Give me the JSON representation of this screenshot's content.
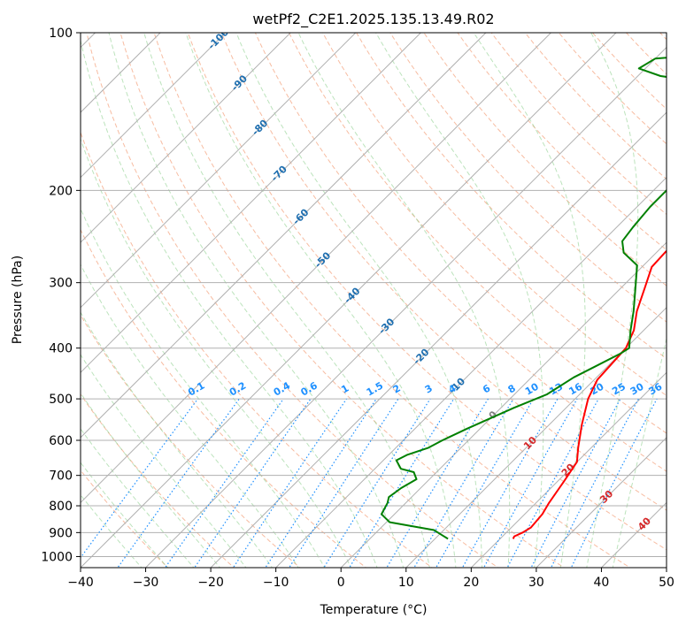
{
  "chart_data": {
    "type": "line",
    "title": "wetPf2_C2E1.2025.135.13.49.R02",
    "xlabel": "Temperature (°C)",
    "ylabel": "Pressure (hPa)",
    "xlim": [
      -40,
      50
    ],
    "ylim": [
      1050,
      100
    ],
    "y_scale": "log",
    "x_ticks": [
      -40,
      -30,
      -20,
      -10,
      0,
      10,
      20,
      30,
      40,
      50
    ],
    "y_ticks": [
      100,
      200,
      300,
      400,
      500,
      600,
      700,
      800,
      900,
      1000
    ],
    "grid": true,
    "skew_isotherm_labels": [
      "-100",
      "-90",
      "-80",
      "-70",
      "-60",
      "-50",
      "-40",
      "-30",
      "-20",
      "-10",
      "0",
      "10",
      "20",
      "30",
      "40"
    ],
    "skew_isotherm_label_colors": {
      "negative": "#1f6fb0",
      "zero": "#808080",
      "positive": "#d62728"
    },
    "mixing_ratio_labels": [
      "0.1",
      "0.2",
      "0.4",
      "0.6",
      "1",
      "1.5",
      "2",
      "3",
      "4",
      "6",
      "8",
      "10",
      "13",
      "16",
      "20",
      "25",
      "30",
      "36"
    ],
    "mixing_ratio_values": [
      0.1,
      0.2,
      0.4,
      0.6,
      1,
      1.5,
      2,
      3,
      4,
      6,
      8,
      10,
      13,
      16,
      20,
      25,
      30,
      36
    ],
    "mixing_ratio_label_color": "#1e90ff",
    "series": [
      {
        "color": "#ff0000",
        "points": [
          [
            22.0,
            925
          ],
          [
            21.8,
            915
          ],
          [
            22.5,
            900
          ],
          [
            23.0,
            880
          ],
          [
            22.7,
            830
          ],
          [
            22.0,
            790
          ],
          [
            21.0,
            720
          ],
          [
            20.0,
            660
          ],
          [
            18.0,
            620
          ],
          [
            15.0,
            560
          ],
          [
            12.0,
            500
          ],
          [
            10.5,
            460
          ],
          [
            10.0,
            400
          ],
          [
            8.5,
            370
          ],
          [
            6.0,
            340
          ],
          [
            3.5,
            305
          ],
          [
            1.5,
            280
          ],
          [
            1.3,
            262
          ],
          [
            1.8,
            243
          ],
          [
            0.5,
            220
          ],
          [
            0.0,
            208
          ],
          [
            1.5,
            195
          ],
          [
            4.5,
            184
          ],
          [
            8.0,
            170
          ],
          [
            11.5,
            154
          ],
          [
            15.0,
            140
          ],
          [
            17.5,
            129
          ],
          [
            20.5,
            120
          ],
          [
            21.0,
            112
          ],
          [
            20.3,
            105
          ],
          [
            19.5,
            100
          ]
        ]
      },
      {
        "color": "#008000",
        "points": [
          [
            12.0,
            925
          ],
          [
            10.5,
            910
          ],
          [
            8.5,
            890
          ],
          [
            0.5,
            860
          ],
          [
            -1.0,
            842
          ],
          [
            -2.0,
            830
          ],
          [
            -2.8,
            790
          ],
          [
            -3.5,
            770
          ],
          [
            -3.0,
            740
          ],
          [
            -2.0,
            712
          ],
          [
            -3.5,
            690
          ],
          [
            -6.0,
            680
          ],
          [
            -8.0,
            655
          ],
          [
            -7.2,
            640
          ],
          [
            -5.0,
            620
          ],
          [
            -4.0,
            600
          ],
          [
            -2.0,
            570
          ],
          [
            2.0,
            520
          ],
          [
            5.0,
            490
          ],
          [
            6.5,
            455
          ],
          [
            8.0,
            435
          ],
          [
            10.0,
            410
          ],
          [
            10.5,
            400
          ],
          [
            8.0,
            370
          ],
          [
            5.5,
            340
          ],
          [
            2.0,
            305
          ],
          [
            -1.0,
            278
          ],
          [
            -5.0,
            263
          ],
          [
            -7.0,
            250
          ],
          [
            -7.5,
            235
          ],
          [
            -8.0,
            215
          ],
          [
            -8.0,
            200
          ],
          [
            -8.5,
            180
          ],
          [
            -10.5,
            162
          ],
          [
            -12.5,
            150
          ],
          [
            -13.0,
            143
          ],
          [
            -12.0,
            137
          ],
          [
            -14.5,
            129
          ],
          [
            -19.5,
            124
          ],
          [
            -26.5,
            121
          ],
          [
            -31.0,
            117
          ],
          [
            -30.0,
            112
          ],
          [
            -15.0,
            108
          ],
          [
            -5.0,
            104
          ],
          [
            1.0,
            100
          ]
        ]
      }
    ]
  }
}
